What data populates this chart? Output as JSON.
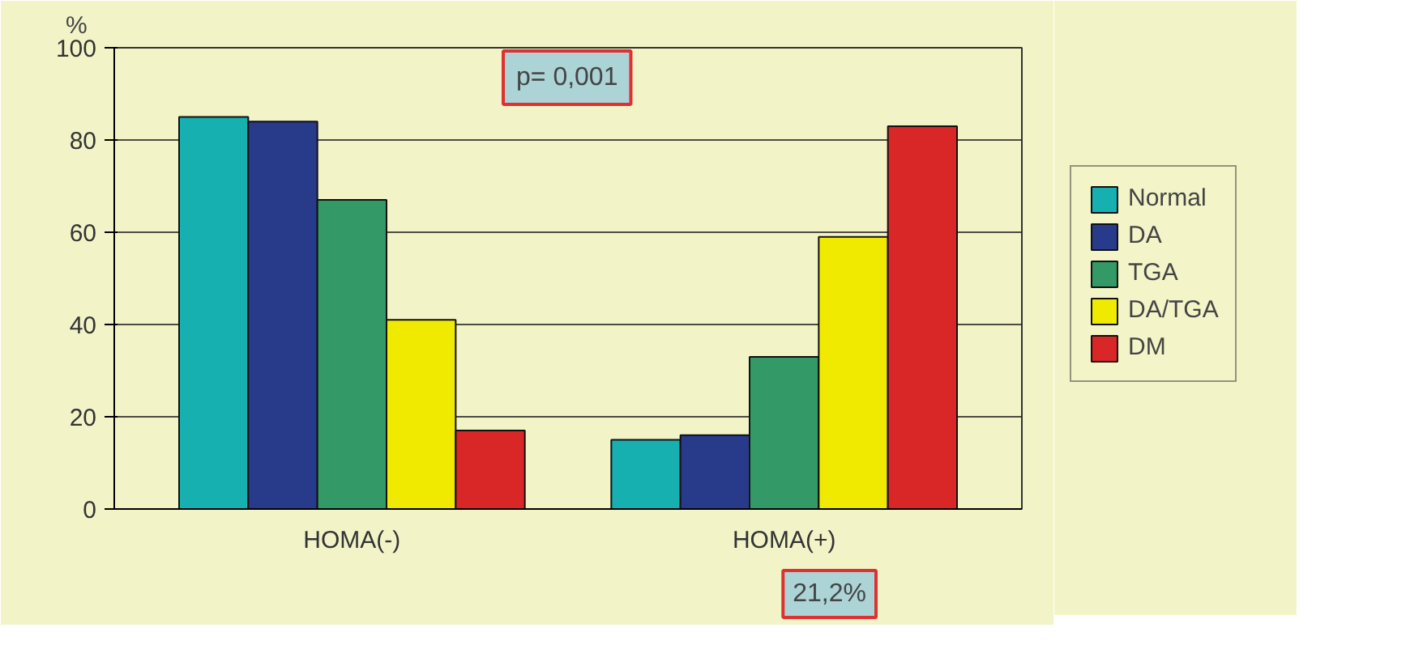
{
  "chart_data": {
    "type": "bar",
    "ylabel": "%",
    "categories": [
      "HOMA(-)",
      "HOMA(+)"
    ],
    "series": [
      {
        "name": "Normal",
        "color": "#17b0b0",
        "values": [
          85,
          15
        ]
      },
      {
        "name": "DA",
        "color": "#283a8a",
        "values": [
          84,
          16
        ]
      },
      {
        "name": "TGA",
        "color": "#339966",
        "values": [
          67,
          33
        ]
      },
      {
        "name": "DA/TGA",
        "color": "#f0ea00",
        "values": [
          41,
          59
        ]
      },
      {
        "name": "DM",
        "color": "#d92626",
        "values": [
          17,
          83
        ]
      }
    ],
    "ylim": [
      0,
      100
    ],
    "yticks": [
      0,
      20,
      40,
      60,
      80,
      100
    ],
    "grid": "y",
    "legend": "right",
    "annotations": [
      "p= 0,001",
      "21,2%"
    ]
  }
}
